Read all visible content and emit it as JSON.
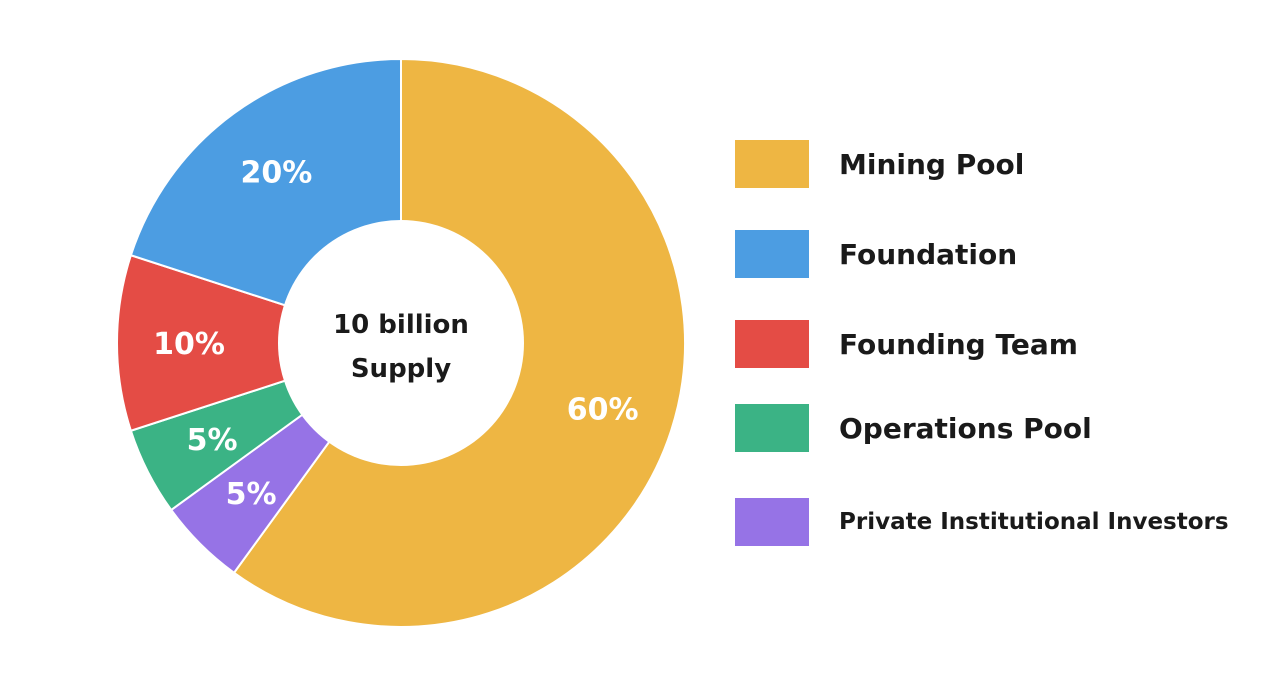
{
  "chart_data": {
    "type": "pie",
    "title": "",
    "center_text": [
      "10 billion",
      "Supply"
    ],
    "series": [
      {
        "name": "Mining Pool",
        "value": 60,
        "label": "60%",
        "color": "#EEB643"
      },
      {
        "name": "Private Institutional Investors",
        "value": 5,
        "label": "5%",
        "color": "#9673E6"
      },
      {
        "name": "Operations Pool",
        "value": 5,
        "label": "5%",
        "color": "#3BB385"
      },
      {
        "name": "Founding Team",
        "value": 10,
        "label": "10%",
        "color": "#E44C45"
      },
      {
        "name": "Foundation",
        "value": 20,
        "label": "20%",
        "color": "#4C9DE2"
      }
    ],
    "legend": {
      "position": "right",
      "items": [
        {
          "label": "Mining Pool",
          "color": "#EEB643"
        },
        {
          "label": "Foundation",
          "color": "#4C9DE2"
        },
        {
          "label": "Founding Team",
          "color": "#E44C45"
        },
        {
          "label": "Operations Pool",
          "color": "#3BB385"
        },
        {
          "label": "Private Institutional Investors",
          "color": "#9673E6"
        }
      ]
    }
  }
}
